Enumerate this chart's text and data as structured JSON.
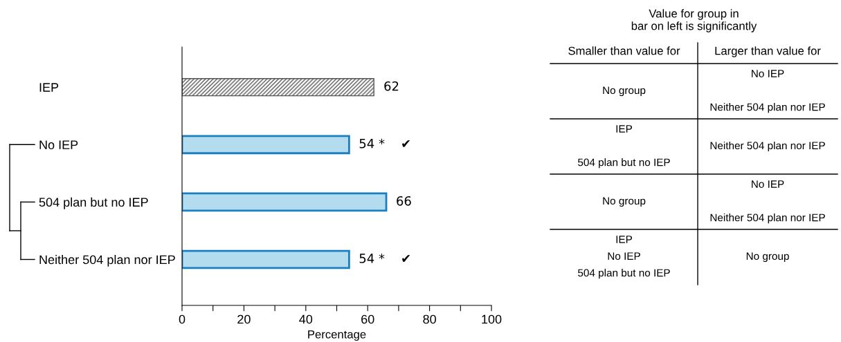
{
  "chart_data": {
    "type": "bar",
    "orientation": "horizontal",
    "categories": [
      "IEP",
      "No IEP",
      "504 plan but no IEP",
      "Neither 504 plan nor IEP"
    ],
    "values": [
      62,
      54,
      66,
      54
    ],
    "colors": [
      "#555555",
      "#b3dcef",
      "#b3dcef",
      "#b3dcef"
    ],
    "value_labels": [
      "62",
      "54 *    ✔",
      "66",
      "54 *    ✔"
    ],
    "xlim": [
      0,
      100
    ],
    "xticks": [
      0,
      {
        "value": 10,
        "label": null
      },
      20,
      {
        "value": 30,
        "label": null
      },
      40,
      {
        "value": 50,
        "label": null
      },
      60,
      {
        "value": 70,
        "label": null
      },
      80,
      {
        "value": 90,
        "label": null
      },
      100
    ],
    "xlabel": "Percentage",
    "grid": false,
    "legend": false,
    "annotations": [
      "Value for group in\nbar on left is significantly",
      "Smaller than value for",
      "Larger than value for",
      "No group",
      "No IEP\n\nNeither 504 plan nor IEP",
      "IEP\n\n504 plan but no IEP",
      "Neither 504 plan nor IEP",
      "No group",
      "No IEP\n\nNeither 504 plan nor IEP",
      "IEP\nNo IEP\n504 plan but no IEP",
      "No group"
    ]
  }
}
